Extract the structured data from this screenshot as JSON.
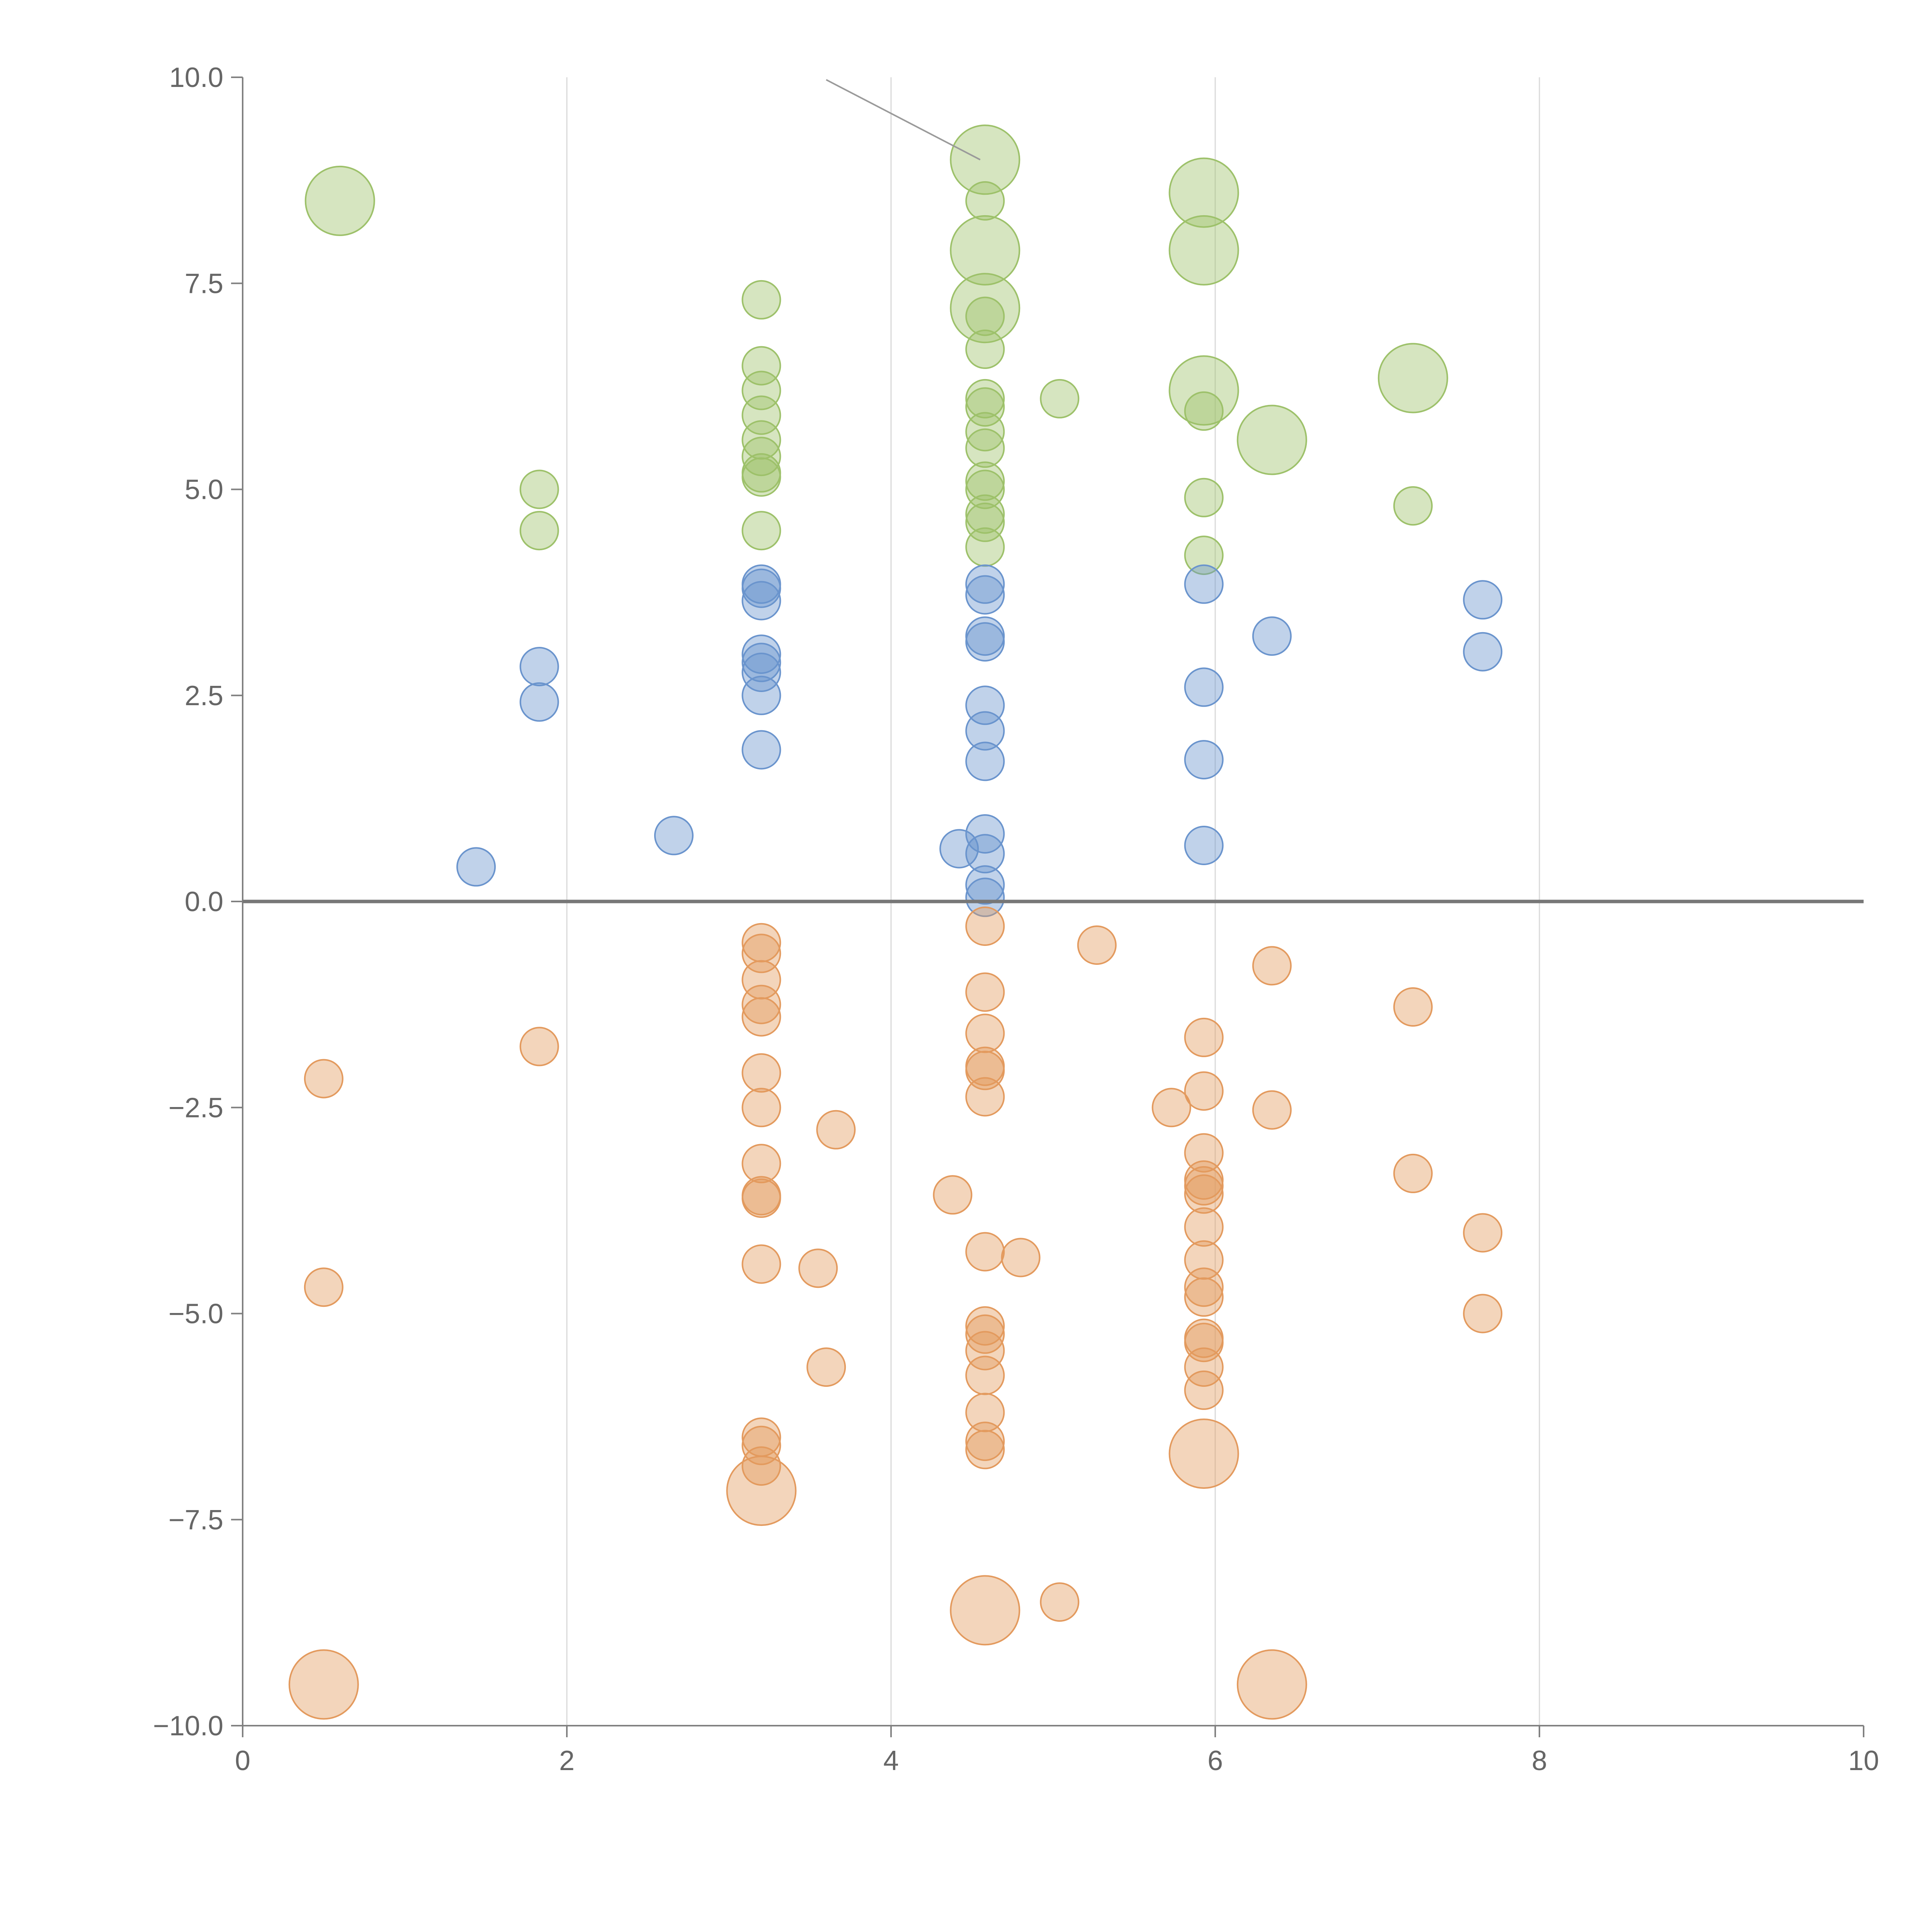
{
  "chart_data": {
    "type": "scatter",
    "title": "",
    "xlabel": "",
    "ylabel": "",
    "xlim": [
      0,
      10
    ],
    "ylim": [
      -10,
      10
    ],
    "x_ticks": [
      "0",
      "2",
      "4",
      "6",
      "8",
      "10"
    ],
    "y_ticks": [
      "10.0",
      "7.5",
      "5.0",
      "2.5",
      "0.0",
      "−2.5",
      "−5.0",
      "−7.5",
      "−10.0"
    ],
    "grid": "vertical",
    "zero_line": true,
    "colors": {
      "green": "#9dc16a",
      "blue": "#6a94cd",
      "orange": "#e39a5e"
    },
    "series": [
      {
        "color": "green",
        "points": [
          [
            0.6,
            8.5,
            2
          ],
          [
            1.83,
            5.0,
            1
          ],
          [
            1.83,
            4.5,
            1
          ],
          [
            3.2,
            7.3,
            1
          ],
          [
            3.2,
            6.5,
            1
          ],
          [
            3.2,
            6.2,
            1
          ],
          [
            3.2,
            5.9,
            1
          ],
          [
            3.2,
            5.6,
            1
          ],
          [
            3.2,
            5.4,
            1
          ],
          [
            3.2,
            5.2,
            1
          ],
          [
            3.2,
            5.15,
            1
          ],
          [
            3.2,
            4.5,
            1
          ],
          [
            4.58,
            9.0,
            2
          ],
          [
            4.58,
            8.5,
            1
          ],
          [
            4.58,
            7.9,
            2
          ],
          [
            4.58,
            7.2,
            2
          ],
          [
            4.58,
            7.1,
            1
          ],
          [
            4.58,
            6.7,
            1
          ],
          [
            4.58,
            6.1,
            1
          ],
          [
            4.58,
            6.0,
            1
          ],
          [
            4.58,
            5.7,
            1
          ],
          [
            4.58,
            5.5,
            1
          ],
          [
            4.58,
            5.1,
            1
          ],
          [
            4.58,
            5.0,
            1
          ],
          [
            4.58,
            4.7,
            1
          ],
          [
            4.58,
            4.6,
            1
          ],
          [
            4.58,
            4.3,
            1
          ],
          [
            5.04,
            6.1,
            1
          ],
          [
            5.93,
            8.6,
            2
          ],
          [
            5.93,
            7.9,
            2
          ],
          [
            5.93,
            6.2,
            2
          ],
          [
            5.93,
            5.95,
            1
          ],
          [
            5.93,
            4.9,
            1
          ],
          [
            5.93,
            4.2,
            1
          ],
          [
            6.35,
            5.6,
            2
          ],
          [
            7.22,
            6.35,
            2
          ],
          [
            7.22,
            4.8,
            1
          ]
        ]
      },
      {
        "color": "blue",
        "points": [
          [
            1.44,
            0.42,
            1
          ],
          [
            1.83,
            2.85,
            1
          ],
          [
            1.83,
            2.42,
            1
          ],
          [
            2.66,
            0.8,
            1
          ],
          [
            3.2,
            3.85,
            1
          ],
          [
            3.2,
            3.8,
            1
          ],
          [
            3.2,
            3.65,
            1
          ],
          [
            3.2,
            3.0,
            1
          ],
          [
            3.2,
            2.9,
            1
          ],
          [
            3.2,
            2.78,
            1
          ],
          [
            3.2,
            2.5,
            1
          ],
          [
            3.2,
            1.84,
            1
          ],
          [
            4.42,
            0.64,
            1
          ],
          [
            4.58,
            3.85,
            1
          ],
          [
            4.58,
            3.72,
            1
          ],
          [
            4.58,
            3.22,
            1
          ],
          [
            4.58,
            3.15,
            1
          ],
          [
            4.58,
            2.38,
            1
          ],
          [
            4.58,
            2.07,
            1
          ],
          [
            4.58,
            1.7,
            1
          ],
          [
            4.58,
            0.82,
            1
          ],
          [
            4.58,
            0.58,
            1
          ],
          [
            4.58,
            0.2,
            1
          ],
          [
            4.58,
            0.05,
            1
          ],
          [
            5.93,
            3.85,
            1
          ],
          [
            5.93,
            2.6,
            1
          ],
          [
            5.93,
            1.72,
            1
          ],
          [
            5.93,
            0.68,
            1
          ],
          [
            6.35,
            3.22,
            1
          ],
          [
            7.65,
            3.66,
            1
          ],
          [
            7.65,
            3.03,
            1
          ]
        ]
      },
      {
        "color": "orange",
        "points": [
          [
            0.5,
            -2.15,
            1
          ],
          [
            0.5,
            -4.68,
            1
          ],
          [
            0.5,
            -9.5,
            2
          ],
          [
            1.83,
            -1.76,
            1
          ],
          [
            3.2,
            -0.5,
            1
          ],
          [
            3.2,
            -0.63,
            1
          ],
          [
            3.2,
            -0.95,
            1
          ],
          [
            3.2,
            -1.25,
            1
          ],
          [
            3.2,
            -1.4,
            1
          ],
          [
            3.2,
            -2.08,
            1
          ],
          [
            3.2,
            -2.5,
            1
          ],
          [
            3.2,
            -3.18,
            1
          ],
          [
            3.2,
            -3.57,
            1
          ],
          [
            3.2,
            -3.6,
            1
          ],
          [
            3.2,
            -4.4,
            1
          ],
          [
            3.2,
            -6.5,
            1
          ],
          [
            3.2,
            -6.6,
            1
          ],
          [
            3.2,
            -6.85,
            1
          ],
          [
            3.2,
            -7.15,
            2
          ],
          [
            3.55,
            -4.45,
            1
          ],
          [
            3.6,
            -5.65,
            1
          ],
          [
            3.66,
            -2.77,
            1
          ],
          [
            4.38,
            -3.56,
            1
          ],
          [
            4.58,
            -0.3,
            1
          ],
          [
            4.58,
            -1.1,
            1
          ],
          [
            4.58,
            -1.6,
            1
          ],
          [
            4.58,
            -2.0,
            1
          ],
          [
            4.58,
            -2.05,
            1
          ],
          [
            4.58,
            -2.37,
            1
          ],
          [
            4.58,
            -4.25,
            1
          ],
          [
            4.58,
            -5.15,
            1
          ],
          [
            4.58,
            -5.25,
            1
          ],
          [
            4.58,
            -5.45,
            1
          ],
          [
            4.58,
            -5.75,
            1
          ],
          [
            4.58,
            -6.2,
            1
          ],
          [
            4.58,
            -6.55,
            1
          ],
          [
            4.58,
            -6.65,
            1
          ],
          [
            4.58,
            -8.6,
            2
          ],
          [
            4.8,
            -4.32,
            1
          ],
          [
            5.04,
            -8.5,
            1
          ],
          [
            5.27,
            -0.53,
            1
          ],
          [
            5.73,
            -2.5,
            1
          ],
          [
            5.93,
            -1.65,
            1
          ],
          [
            5.93,
            -2.3,
            1
          ],
          [
            5.93,
            -3.05,
            1
          ],
          [
            5.93,
            -3.38,
            1
          ],
          [
            5.93,
            -3.45,
            1
          ],
          [
            5.93,
            -3.55,
            1
          ],
          [
            5.93,
            -3.95,
            1
          ],
          [
            5.93,
            -4.35,
            1
          ],
          [
            5.93,
            -4.68,
            1
          ],
          [
            5.93,
            -4.8,
            1
          ],
          [
            5.93,
            -5.3,
            1
          ],
          [
            5.93,
            -5.35,
            1
          ],
          [
            5.93,
            -5.65,
            1
          ],
          [
            5.93,
            -5.93,
            1
          ],
          [
            5.93,
            -6.7,
            2
          ],
          [
            6.35,
            -0.78,
            1
          ],
          [
            6.35,
            -2.53,
            1
          ],
          [
            6.35,
            -9.5,
            2
          ],
          [
            7.22,
            -1.28,
            1
          ],
          [
            7.22,
            -3.3,
            1
          ],
          [
            7.65,
            -4.02,
            1
          ],
          [
            7.65,
            -5.0,
            1
          ]
        ]
      }
    ]
  }
}
